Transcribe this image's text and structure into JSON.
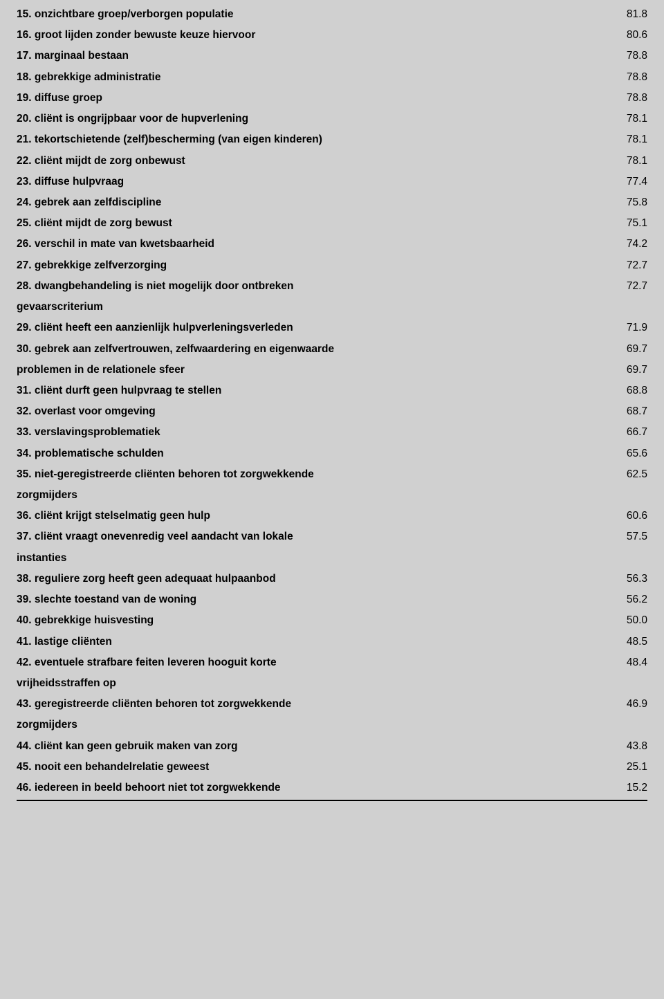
{
  "table": {
    "background_color": "#d0d0d0",
    "text_color": "#000000",
    "font_family": "Verdana",
    "font_size_pt": 11,
    "label_font_weight": 700,
    "value_font_weight": 400,
    "rows": [
      {
        "label": "15. onzichtbare groep/verborgen populatie",
        "value": "81.8"
      },
      {
        "label": "16. groot lijden zonder bewuste keuze hiervoor",
        "value": "80.6"
      },
      {
        "label": "17. marginaal bestaan",
        "value": "78.8"
      },
      {
        "label": "18. gebrekkige administratie",
        "value": "78.8"
      },
      {
        "label": "19. diffuse groep",
        "value": "78.8"
      },
      {
        "label": "20. cliënt is ongrijpbaar voor de hupverlening",
        "value": "78.1"
      },
      {
        "label": "21. tekortschietende (zelf)bescherming (van eigen kinderen)",
        "value": "78.1"
      },
      {
        "label": "22. cliënt mijdt de zorg onbewust",
        "value": "78.1"
      },
      {
        "label": "23. diffuse hulpvraag",
        "value": "77.4"
      },
      {
        "label": "24. gebrek aan zelfdiscipline",
        "value": "75.8"
      },
      {
        "label": "25. cliënt mijdt de zorg bewust",
        "value": "75.1"
      },
      {
        "label": "26. verschil in mate van kwetsbaarheid",
        "value": "74.2"
      },
      {
        "label": "27. gebrekkige zelfverzorging",
        "value": "72.7"
      },
      {
        "label": "28. dwangbehandeling is niet mogelijk door ontbreken",
        "value": "72.7"
      },
      {
        "label": "gevaarscriterium",
        "value": ""
      },
      {
        "label": "29. cliënt heeft een aanzienlijk hulpverleningsverleden",
        "value": "71.9"
      },
      {
        "label": "30. gebrek aan zelfvertrouwen, zelfwaardering en eigenwaarde",
        "value": "69.7"
      },
      {
        "label": "problemen in de relationele sfeer",
        "value": "69.7"
      },
      {
        "label": "31. cliënt durft geen hulpvraag te stellen",
        "value": "68.8"
      },
      {
        "label": "32. overlast voor omgeving",
        "value": "68.7"
      },
      {
        "label": "33. verslavingsproblematiek",
        "value": "66.7"
      },
      {
        "label": "34. problematische schulden",
        "value": "65.6"
      },
      {
        "label": "35. niet-geregistreerde cliënten behoren tot zorgwekkende",
        "value": "62.5"
      },
      {
        "label": "zorgmijders",
        "value": ""
      },
      {
        "label": "36. cliënt krijgt stelselmatig geen hulp",
        "value": "60.6"
      },
      {
        "label": "37. cliënt vraagt onevenredig veel aandacht van lokale",
        "value": "57.5"
      },
      {
        "label": "instanties",
        "value": ""
      },
      {
        "label": "38. reguliere zorg heeft geen adequaat hulpaanbod",
        "value": "56.3"
      },
      {
        "label": "39. slechte toestand van de woning",
        "value": "56.2"
      },
      {
        "label": "40. gebrekkige huisvesting",
        "value": "50.0"
      },
      {
        "label": "41. lastige cliënten",
        "value": "48.5"
      },
      {
        "label": "42. eventuele strafbare feiten leveren hooguit korte",
        "value": "48.4"
      },
      {
        "label": "vrijheidsstraffen op",
        "value": ""
      },
      {
        "label": "43. geregistreerde cliënten behoren tot zorgwekkende",
        "value": "46.9"
      },
      {
        "label": "zorgmijders",
        "value": ""
      },
      {
        "label": "44. cliënt kan geen gebruik maken van zorg",
        "value": "43.8"
      },
      {
        "label": "45. nooit een behandelrelatie geweest",
        "value": "25.1"
      },
      {
        "label": "46. iedereen in beeld behoort niet tot zorgwekkende",
        "value": "15.2"
      }
    ]
  }
}
